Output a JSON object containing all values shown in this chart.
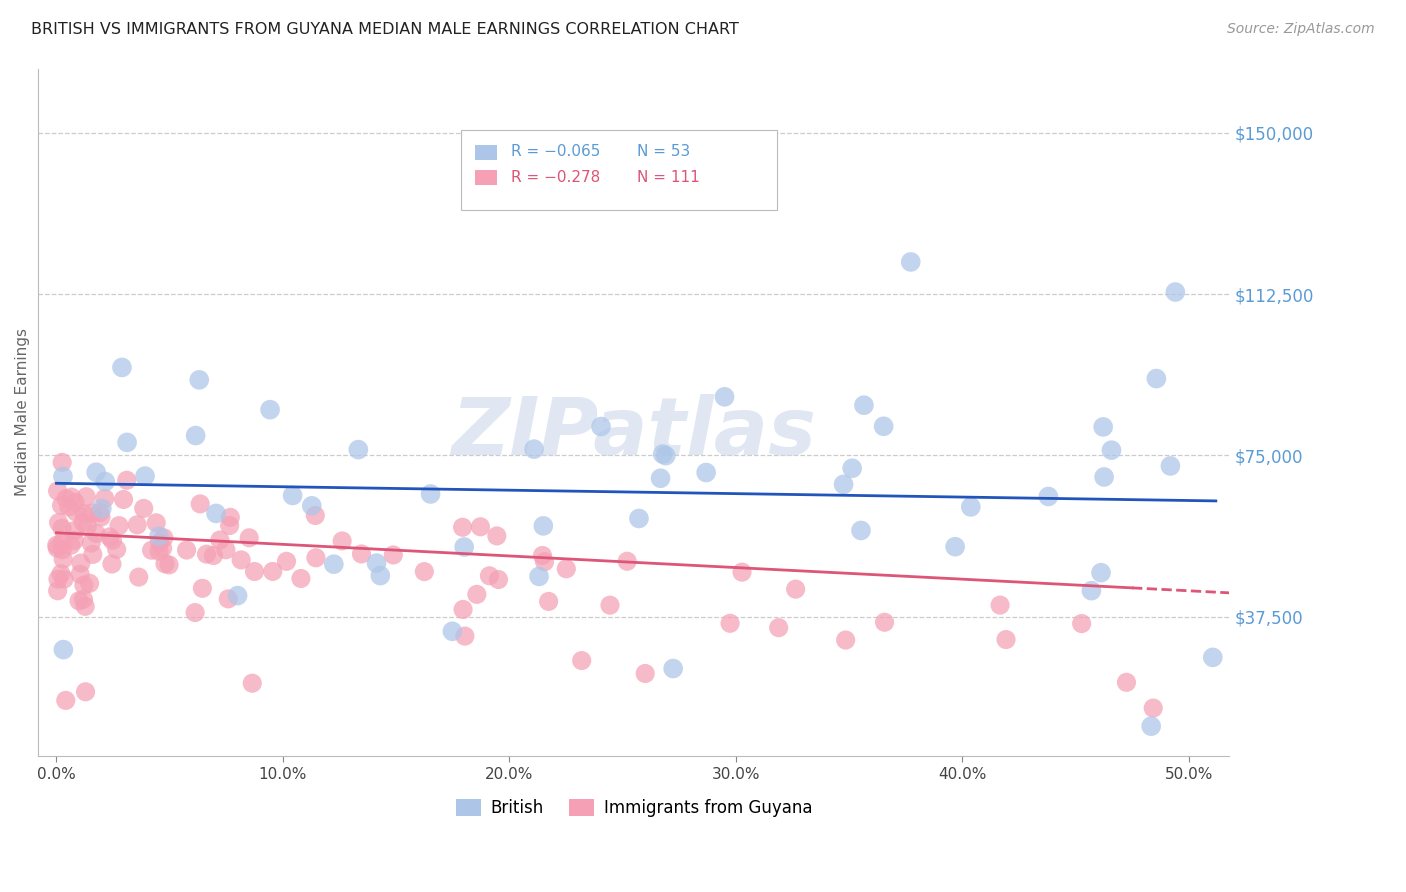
{
  "title": "BRITISH VS IMMIGRANTS FROM GUYANA MEDIAN MALE EARNINGS CORRELATION CHART",
  "source": "Source: ZipAtlas.com",
  "ylabel": "Median Male Earnings",
  "xlabel_ticks": [
    "0.0%",
    "10.0%",
    "20.0%",
    "30.0%",
    "40.0%",
    "50.0%"
  ],
  "xlabel_vals": [
    0.0,
    0.1,
    0.2,
    0.3,
    0.4,
    0.5
  ],
  "ylabel_ticks": [
    "$37,500",
    "$75,000",
    "$112,500",
    "$150,000"
  ],
  "ylabel_vals": [
    37500,
    75000,
    112500,
    150000
  ],
  "xlim": [
    -0.008,
    0.518
  ],
  "ylim": [
    5000,
    165000
  ],
  "british_color": "#adc6e8",
  "guyana_color": "#f5a0b5",
  "british_line_color": "#2255bb",
  "guyana_line_color": "#dd5577",
  "legend_british_label": "British",
  "legend_guyana_label": "Immigrants from Guyana",
  "legend_R_british": "-0.065",
  "legend_N_british": "53",
  "legend_R_guyana": "-0.278",
  "legend_N_guyana": "111",
  "watermark": "ZIPatlas",
  "grid_color": "#cccccc",
  "background_color": "#ffffff",
  "british_R": -0.065,
  "british_N": 53,
  "guyana_R": -0.278,
  "guyana_N": 111
}
